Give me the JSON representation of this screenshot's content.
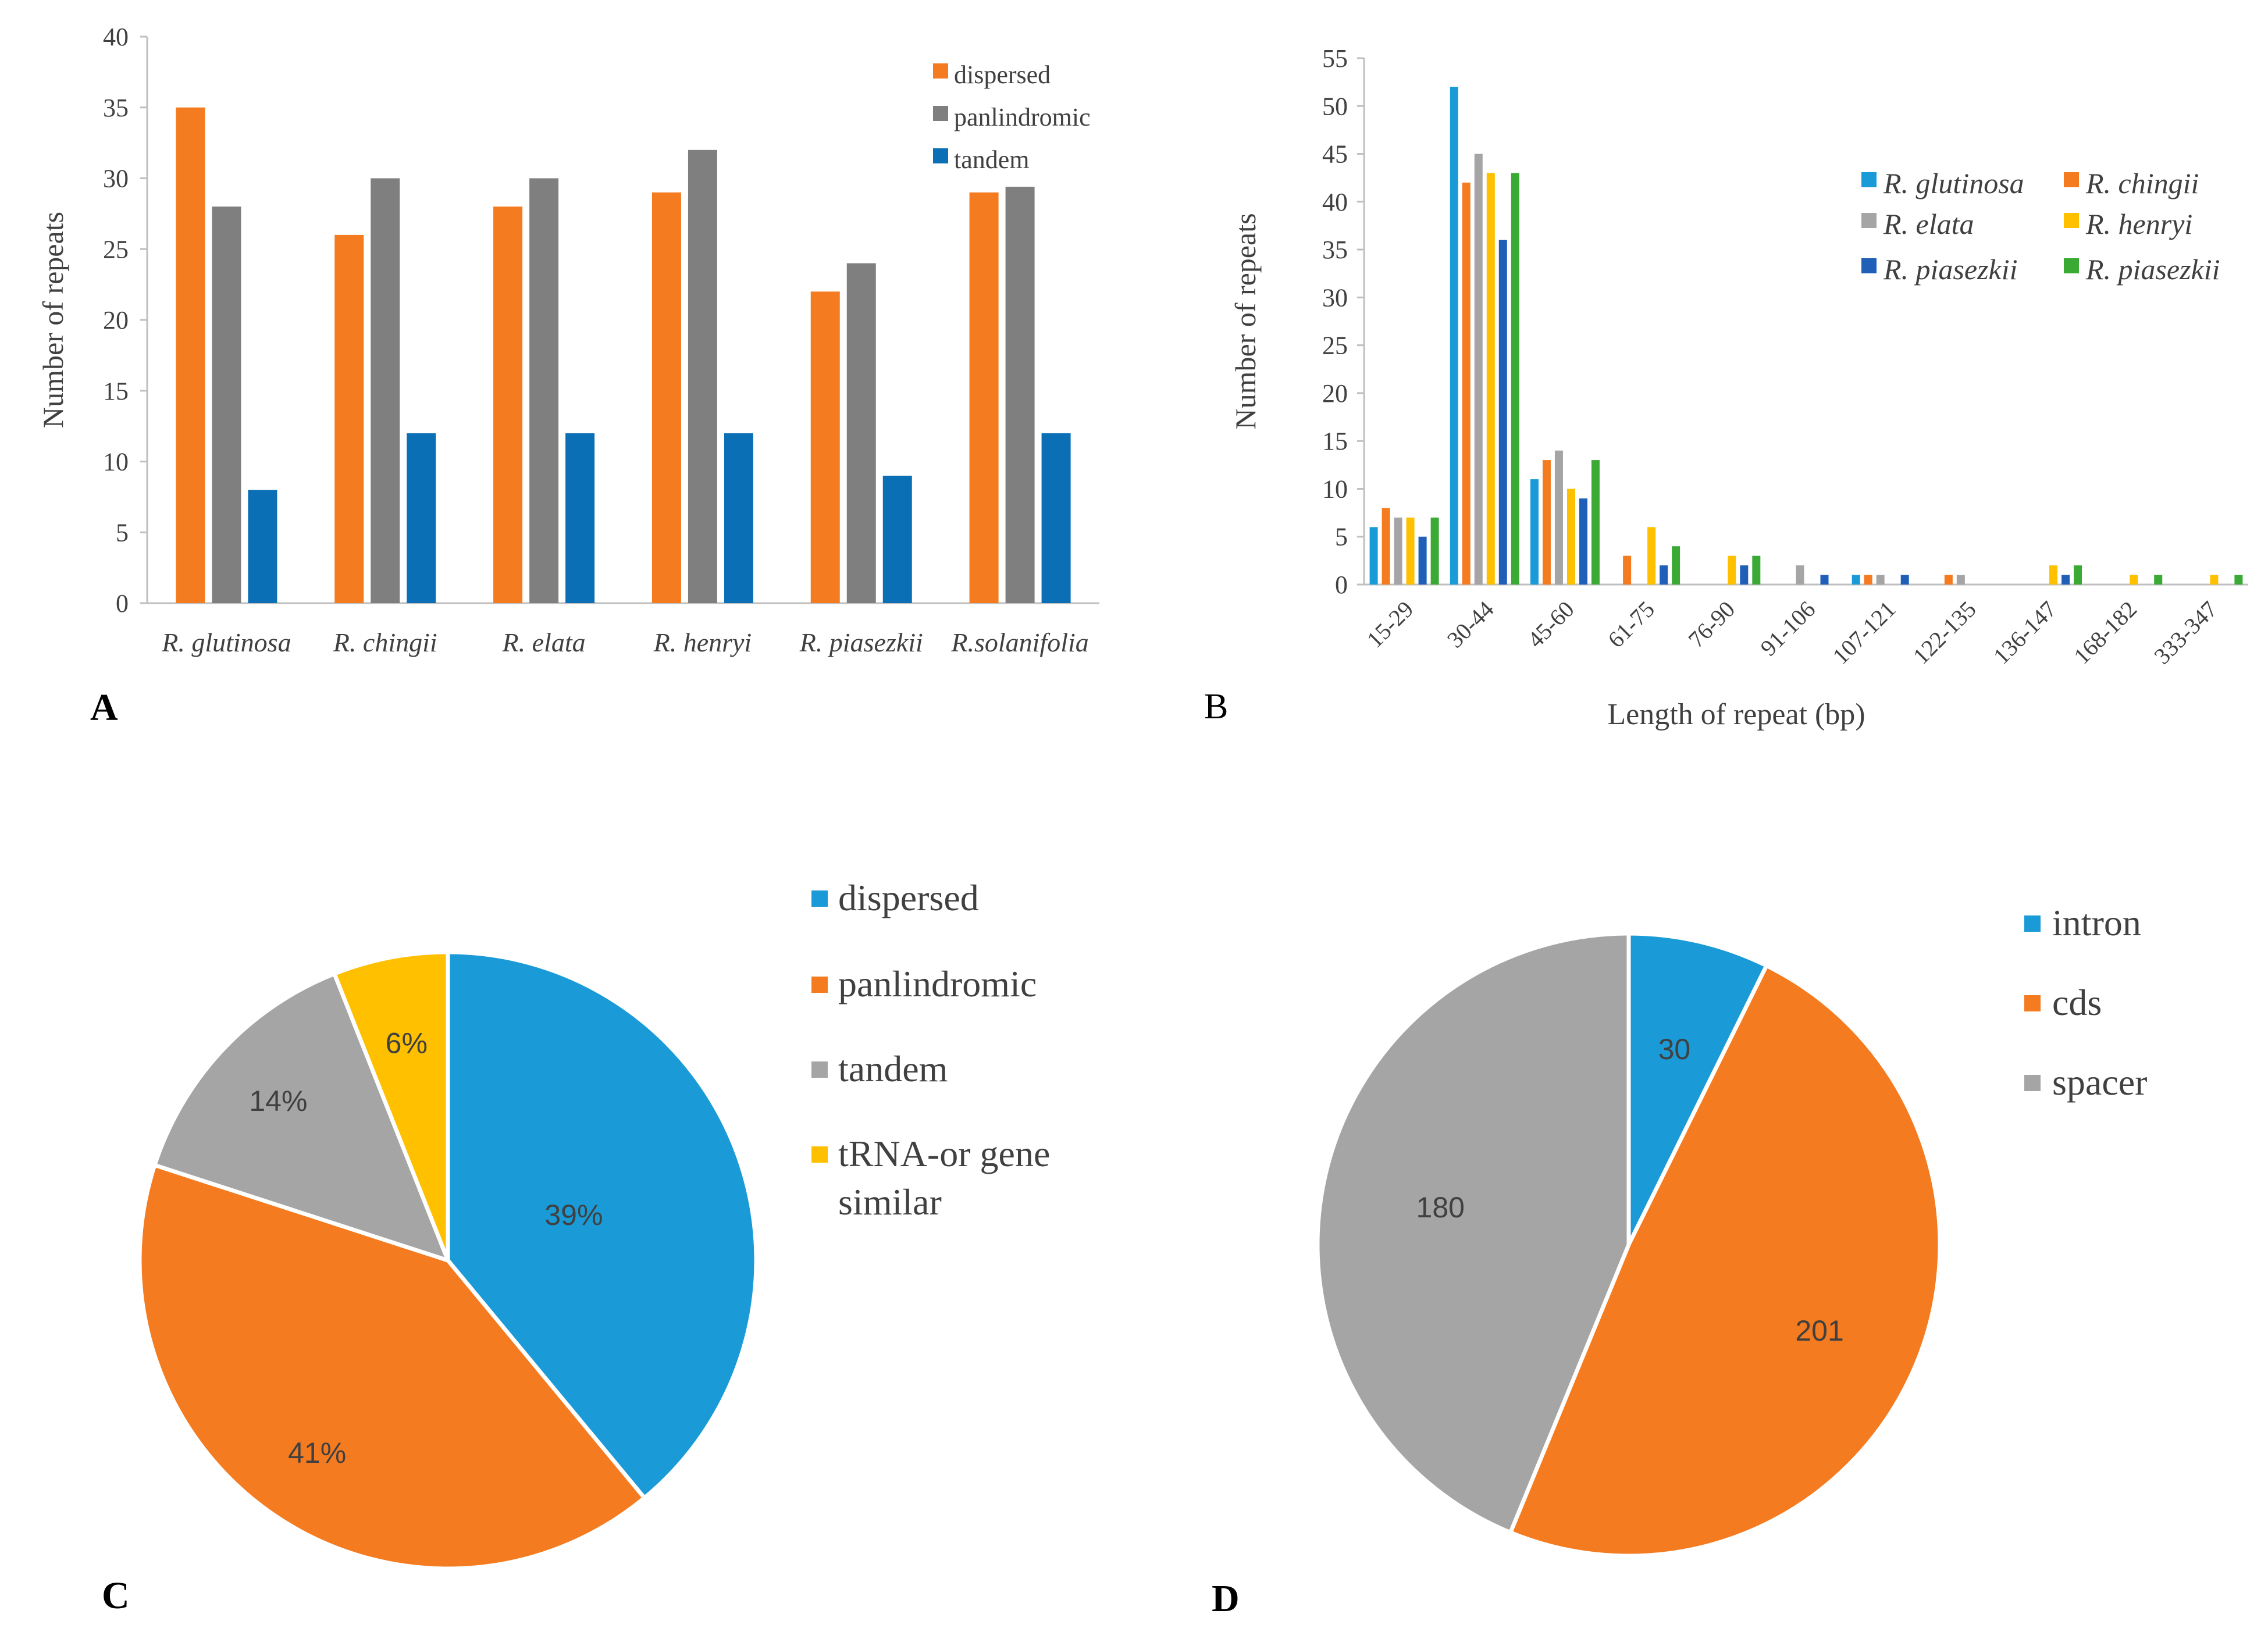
{
  "chart_data": [
    {
      "panel": "A",
      "type": "bar",
      "ylabel": "Number of repeats",
      "xlabel": "",
      "ylim": [
        0,
        40
      ],
      "yticks": [
        0,
        5,
        10,
        15,
        20,
        25,
        30,
        35,
        40
      ],
      "legend_position": "top-right",
      "categories": [
        "R. glutinosa",
        "R. chingii",
        "R. elata",
        "R. henryi",
        "R. piasezkii",
        "R.solanifolia"
      ],
      "series": [
        {
          "name": "dispersed",
          "color": "#F47B20",
          "values": [
            35,
            26,
            28,
            29,
            22,
            29
          ]
        },
        {
          "name": "panlindromic",
          "color": "#7F7F7F",
          "values": [
            28,
            30,
            30,
            32,
            24,
            29.4
          ]
        },
        {
          "name": "tandem",
          "color": "#0B6FB5",
          "values": [
            8,
            12,
            12,
            12,
            9,
            12
          ]
        }
      ]
    },
    {
      "panel": "B",
      "type": "bar",
      "ylabel": "Number of repeats",
      "xlabel": "Length of repeat (bp)",
      "ylim": [
        0,
        55
      ],
      "yticks": [
        0,
        5,
        10,
        15,
        20,
        25,
        30,
        35,
        40,
        45,
        50,
        55
      ],
      "legend_position": "top-right",
      "categories": [
        "15-29",
        "30-44",
        "45-60",
        "61-75",
        "76-90",
        "91-106",
        "107-121",
        "122-135",
        "136-147",
        "168-182",
        "333-347"
      ],
      "series": [
        {
          "name": "R. glutinosa",
          "color": "#1A9BD7",
          "values": [
            6,
            52,
            11,
            0,
            0,
            0,
            1,
            0,
            0,
            0,
            0
          ]
        },
        {
          "name": "R. chingii",
          "color": "#F47B20",
          "values": [
            8,
            42,
            13,
            3,
            0,
            0,
            1,
            1,
            0,
            0,
            0
          ]
        },
        {
          "name": "R. elata",
          "color": "#A5A5A5",
          "values": [
            7,
            45,
            14,
            0,
            0,
            2,
            1,
            1,
            0,
            0,
            0
          ]
        },
        {
          "name": "R. henryi",
          "color": "#FFC000",
          "values": [
            7,
            43,
            10,
            6,
            3,
            0,
            0,
            0,
            2,
            1,
            1
          ]
        },
        {
          "name": "R. piasezkii",
          "color": "#1F5FB8",
          "values": [
            5,
            36,
            9,
            2,
            2,
            1,
            1,
            0,
            1,
            0,
            0
          ]
        },
        {
          "name": "R. piasezkii",
          "color": "#3AAA35",
          "values": [
            7,
            43,
            13,
            4,
            3,
            0,
            0,
            0,
            2,
            1,
            1
          ]
        }
      ]
    },
    {
      "panel": "C",
      "type": "pie",
      "legend_position": "right",
      "slices": [
        {
          "name": "dispersed",
          "value": 39,
          "label": "39%",
          "color": "#1A9BD7"
        },
        {
          "name": "panlindromic",
          "value": 41,
          "label": "41%",
          "color": "#F47B20"
        },
        {
          "name": "tandem",
          "value": 14,
          "label": "14%",
          "color": "#A5A5A5"
        },
        {
          "name": "tRNA-or gene similar",
          "value": 6,
          "label": "6%",
          "color": "#FFC000"
        }
      ],
      "legend_lines": [
        [
          "dispersed"
        ],
        [
          "panlindromic"
        ],
        [
          "tandem"
        ],
        [
          "tRNA-or gene",
          "similar"
        ]
      ]
    },
    {
      "panel": "D",
      "type": "pie",
      "legend_position": "right",
      "slices": [
        {
          "name": "intron",
          "value": 30,
          "label": "30",
          "color": "#1A9BD7"
        },
        {
          "name": "cds",
          "value": 201,
          "label": "201",
          "color": "#F47B20"
        },
        {
          "name": "spacer",
          "value": 180,
          "label": "180",
          "color": "#A5A5A5"
        }
      ]
    }
  ],
  "panel_labels": [
    "A",
    "B",
    "C",
    "D"
  ]
}
